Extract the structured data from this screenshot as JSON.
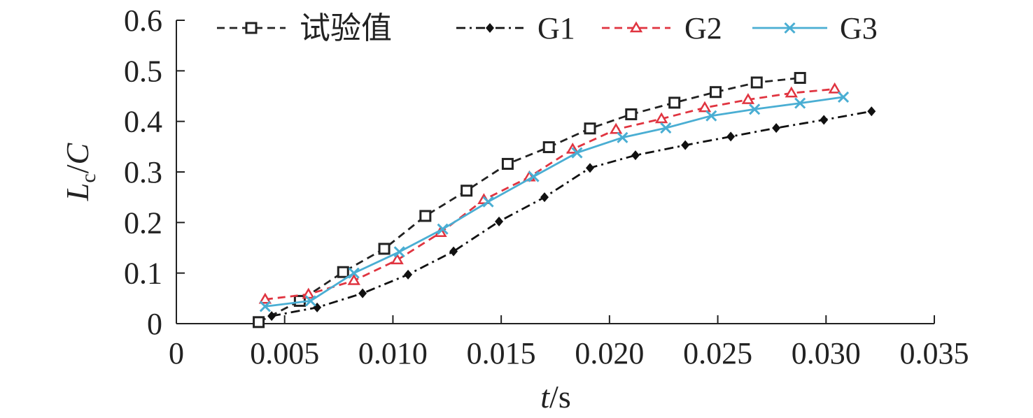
{
  "chart_data": {
    "type": "line",
    "title": "",
    "xlabel": {
      "var": "t",
      "sep": "/",
      "unit": "s"
    },
    "ylabel": {
      "var": "L",
      "sub": "c",
      "sep": "/",
      "unit": "C"
    },
    "xlim": [
      0,
      0.035
    ],
    "ylim": [
      0,
      0.6
    ],
    "xticks": [
      0,
      0.005,
      0.01,
      0.015,
      0.02,
      0.025,
      0.03,
      0.035
    ],
    "xtick_labels": [
      "0",
      "0.005",
      "0.010",
      "0.015",
      "0.020",
      "0.025",
      "0.030",
      "0.035"
    ],
    "yticks": [
      0,
      0.1,
      0.2,
      0.3,
      0.4,
      0.5,
      0.6
    ],
    "ytick_labels": [
      "0",
      "0.1",
      "0.2",
      "0.3",
      "0.4",
      "0.5",
      "0.6"
    ],
    "grid": false,
    "legend_position": "top",
    "series": [
      {
        "name": "试验值",
        "color": "#222222",
        "line_style": "dashed",
        "marker": "square-open",
        "x": [
          0.0038,
          0.0057,
          0.0077,
          0.0096,
          0.0115,
          0.0134,
          0.0153,
          0.0172,
          0.0191,
          0.021,
          0.023,
          0.0249,
          0.0268,
          0.0288
        ],
        "y": [
          0.003,
          0.045,
          0.102,
          0.148,
          0.213,
          0.263,
          0.316,
          0.349,
          0.386,
          0.414,
          0.437,
          0.458,
          0.477,
          0.486
        ]
      },
      {
        "name": "G1",
        "color": "#111111",
        "line_style": "dash-dot",
        "marker": "diamond-filled",
        "x": [
          0.0044,
          0.0065,
          0.0086,
          0.0107,
          0.0128,
          0.0149,
          0.017,
          0.0191,
          0.0212,
          0.0235,
          0.0256,
          0.0277,
          0.0299,
          0.0321
        ],
        "y": [
          0.015,
          0.032,
          0.06,
          0.097,
          0.143,
          0.202,
          0.25,
          0.308,
          0.333,
          0.353,
          0.37,
          0.387,
          0.403,
          0.42
        ]
      },
      {
        "name": "G2",
        "color": "#e03440",
        "line_style": "dashed",
        "marker": "triangle-open",
        "x": [
          0.0041,
          0.0061,
          0.0082,
          0.0102,
          0.0122,
          0.0142,
          0.0163,
          0.0183,
          0.0203,
          0.0224,
          0.0244,
          0.0264,
          0.0284,
          0.0304
        ],
        "y": [
          0.048,
          0.058,
          0.085,
          0.126,
          0.18,
          0.245,
          0.29,
          0.345,
          0.384,
          0.405,
          0.427,
          0.443,
          0.456,
          0.464
        ]
      },
      {
        "name": "G3",
        "color": "#4aaed3",
        "line_style": "solid",
        "marker": "x",
        "x": [
          0.0041,
          0.0062,
          0.0082,
          0.0103,
          0.0123,
          0.0144,
          0.0165,
          0.0185,
          0.0206,
          0.0226,
          0.0247,
          0.0267,
          0.0288,
          0.0308
        ],
        "y": [
          0.034,
          0.045,
          0.1,
          0.142,
          0.187,
          0.241,
          0.291,
          0.338,
          0.368,
          0.387,
          0.411,
          0.424,
          0.436,
          0.448
        ]
      }
    ]
  }
}
